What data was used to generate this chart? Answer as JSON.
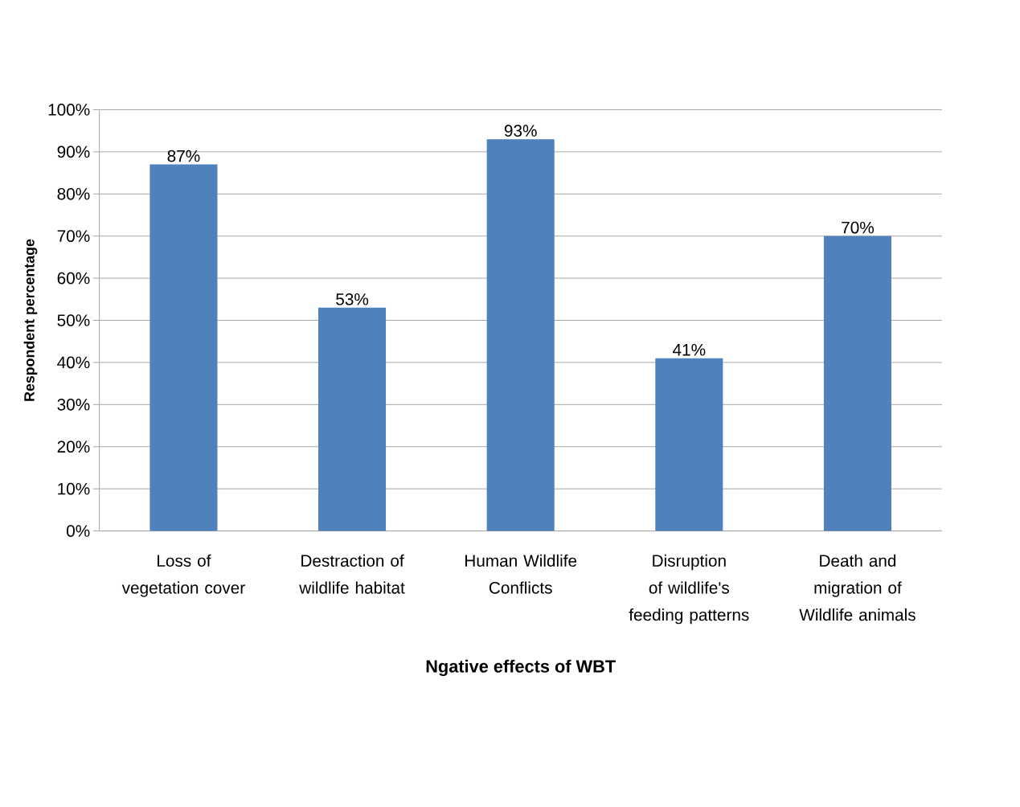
{
  "chart_data": {
    "type": "bar",
    "xlabel": "Ngative effects of WBT",
    "ylabel": "Respondent percentage",
    "categories": [
      "Loss of vegetation cover",
      "Destraction of wildlife habitat",
      "Human Wildlife Conflicts",
      "Disruption of wildlife's feeding patterns",
      "Death and migration of Wildlife animals"
    ],
    "values": [
      87,
      53,
      93,
      41,
      70
    ],
    "value_labels": [
      "87%",
      "53%",
      "93%",
      "41%",
      "70%"
    ],
    "color": "#4f81bd",
    "ylim": [
      0,
      100
    ],
    "yticks": [
      {
        "value": 0,
        "label": "0%"
      },
      {
        "value": 10,
        "label": "10%"
      },
      {
        "value": 20,
        "label": "20%"
      },
      {
        "value": 30,
        "label": "30%"
      },
      {
        "value": 40,
        "label": "40%"
      },
      {
        "value": 50,
        "label": "50%"
      },
      {
        "value": 60,
        "label": "60%"
      },
      {
        "value": 70,
        "label": "70%"
      },
      {
        "value": 80,
        "label": "80%"
      },
      {
        "value": 90,
        "label": "90%"
      },
      {
        "value": 100,
        "label": "100%"
      }
    ],
    "grid": "y"
  }
}
